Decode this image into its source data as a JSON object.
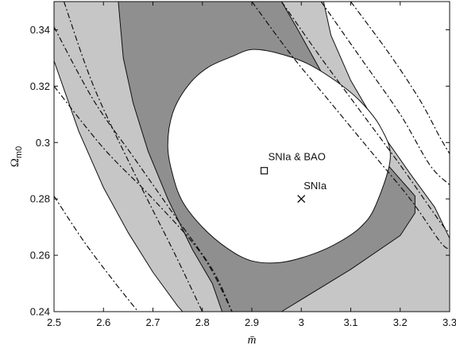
{
  "chart_data": {
    "type": "contour",
    "xlabel": "m̄",
    "ylabel_main": "Ω",
    "ylabel_sub": "m0",
    "xlim": [
      2.5,
      3.3
    ],
    "ylim": [
      0.24,
      0.35
    ],
    "xticks": [
      "2.5",
      "2.6",
      "2.7",
      "2.8",
      "2.9",
      "3",
      "3.1",
      "3.2",
      "3.3"
    ],
    "yticks": [
      "0.24",
      "0.26",
      "0.28",
      "0.3",
      "0.32",
      "0.34"
    ],
    "grid": false,
    "colors": {
      "outer_region": "#ffffff",
      "band_3sigma": "#c6c6c6",
      "band_2sigma": "#8f8f8f",
      "band_1sigma": "#ffffff",
      "contour_line": "#111111"
    },
    "points": [
      {
        "label": "SNIa & BAO",
        "x": 2.925,
        "y": 0.29,
        "marker": "square"
      },
      {
        "label": "SNIa",
        "x": 3.0,
        "y": 0.28,
        "marker": "x"
      }
    ],
    "contours": {
      "inner_ellipse": [
        [
          2.95,
          0.3318
        ],
        [
          3.01,
          0.3282
        ],
        [
          3.07,
          0.3218
        ],
        [
          3.12,
          0.3145
        ],
        [
          3.16,
          0.3055
        ],
        [
          3.18,
          0.2945
        ],
        [
          3.15,
          0.2775
        ],
        [
          3.12,
          0.27
        ],
        [
          3.075,
          0.2645
        ],
        [
          3.025,
          0.2605
        ],
        [
          2.96,
          0.2575
        ],
        [
          2.9,
          0.258
        ],
        [
          2.85,
          0.2625
        ],
        [
          2.8,
          0.27
        ],
        [
          2.76,
          0.279
        ],
        [
          2.74,
          0.2885
        ],
        [
          2.73,
          0.299
        ],
        [
          2.74,
          0.3105
        ],
        [
          2.77,
          0.32
        ],
        [
          2.81,
          0.3265
        ],
        [
          2.86,
          0.3305
        ],
        [
          2.9,
          0.333
        ]
      ],
      "boundary_2sigma": [
        [
          2.63,
          0.35
        ],
        [
          2.64,
          0.33
        ],
        [
          2.66,
          0.314
        ],
        [
          2.69,
          0.297
        ],
        [
          2.73,
          0.28
        ],
        [
          2.78,
          0.262
        ],
        [
          2.82,
          0.25
        ],
        [
          2.84,
          0.24
        ],
        [
          2.96,
          0.24
        ],
        [
          3.1,
          0.255
        ],
        [
          3.2,
          0.267
        ],
        [
          3.23,
          0.275
        ],
        [
          3.23,
          0.281
        ],
        [
          3.17,
          0.293
        ],
        [
          3.12,
          0.305
        ],
        [
          3.05,
          0.322
        ],
        [
          2.99,
          0.341
        ],
        [
          2.96,
          0.35
        ]
      ],
      "boundary_3sigma": [
        [
          2.5,
          0.329
        ],
        [
          2.55,
          0.304
        ],
        [
          2.6,
          0.284
        ],
        [
          2.65,
          0.268
        ],
        [
          2.7,
          0.254
        ],
        [
          2.75,
          0.242
        ],
        [
          2.76,
          0.24
        ],
        [
          3.3,
          0.24
        ],
        [
          3.3,
          0.266
        ],
        [
          3.27,
          0.277
        ],
        [
          3.22,
          0.289
        ],
        [
          3.16,
          0.304
        ],
        [
          3.1,
          0.322
        ],
        [
          3.06,
          0.338
        ],
        [
          3.045,
          0.35
        ],
        [
          2.5,
          0.35
        ]
      ],
      "dash_dot_lines": [
        [
          [
            2.52,
            0.35
          ],
          [
            2.58,
            0.32
          ],
          [
            2.66,
            0.29
          ],
          [
            2.74,
            0.262
          ],
          [
            2.8,
            0.24
          ]
        ],
        [
          [
            2.5,
            0.341
          ],
          [
            2.58,
            0.315
          ],
          [
            2.66,
            0.295
          ],
          [
            2.74,
            0.275
          ],
          [
            2.82,
            0.255
          ],
          [
            2.86,
            0.24
          ]
        ],
        [
          [
            2.5,
            0.32
          ],
          [
            2.6,
            0.298
          ],
          [
            2.7,
            0.28
          ],
          [
            2.8,
            0.26
          ],
          [
            2.86,
            0.24
          ]
        ],
        [
          [
            2.5,
            0.281
          ],
          [
            2.56,
            0.265
          ],
          [
            2.62,
            0.251
          ],
          [
            2.67,
            0.24
          ]
        ],
        [
          [
            2.9,
            0.35
          ],
          [
            2.98,
            0.331
          ],
          [
            3.06,
            0.314
          ],
          [
            3.14,
            0.297
          ],
          [
            3.22,
            0.28
          ],
          [
            3.28,
            0.265
          ],
          [
            3.3,
            0.262
          ]
        ],
        [
          [
            2.96,
            0.35
          ],
          [
            3.04,
            0.33
          ],
          [
            3.12,
            0.311
          ],
          [
            3.2,
            0.292
          ],
          [
            3.28,
            0.272
          ],
          [
            3.3,
            0.268
          ]
        ],
        [
          [
            3.04,
            0.35
          ],
          [
            3.12,
            0.33
          ],
          [
            3.2,
            0.31
          ],
          [
            3.26,
            0.292
          ],
          [
            3.3,
            0.285
          ]
        ],
        [
          [
            3.1,
            0.35
          ],
          [
            3.18,
            0.331
          ],
          [
            3.24,
            0.315
          ],
          [
            3.28,
            0.302
          ],
          [
            3.3,
            0.296
          ]
        ]
      ]
    }
  }
}
